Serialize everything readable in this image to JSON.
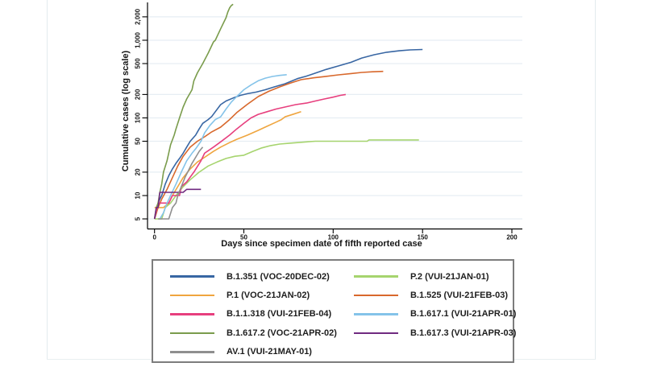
{
  "chart_data": {
    "type": "line",
    "title": "",
    "xlabel": "Days since specimen date of fifth reported case",
    "ylabel": "Cumulative cases (log scale)",
    "x_ticks": [
      0,
      50,
      100,
      150,
      200
    ],
    "x_tick_labels": [
      "0",
      "50",
      "100",
      "150",
      "200"
    ],
    "y_ticks": [
      5,
      10,
      20,
      50,
      100,
      200,
      500,
      1000,
      2000
    ],
    "y_tick_labels": [
      "5",
      "10",
      "20",
      "50",
      "100",
      "200",
      "500",
      "1,000",
      "2,000"
    ],
    "xlim": [
      0,
      205
    ],
    "ylim_log": [
      5,
      3000
    ],
    "y_scale": "log",
    "grid": "horizontal",
    "gridline_color": "#e6edf3",
    "axis_color": "#000000",
    "legend_position": "bottom-box",
    "series": [
      {
        "name": "b-1-351",
        "label": "B.1.351 (VOC-20DEC-02)",
        "color": "#3866a3",
        "points": [
          [
            0,
            5
          ],
          [
            1,
            6
          ],
          [
            2,
            8
          ],
          [
            3,
            9
          ],
          [
            4,
            10
          ],
          [
            6,
            14
          ],
          [
            8,
            18
          ],
          [
            10,
            22
          ],
          [
            12,
            26
          ],
          [
            14,
            30
          ],
          [
            16,
            35
          ],
          [
            18,
            42
          ],
          [
            20,
            50
          ],
          [
            23,
            60
          ],
          [
            25,
            72
          ],
          [
            27,
            85
          ],
          [
            30,
            95
          ],
          [
            32,
            104
          ],
          [
            34,
            120
          ],
          [
            37,
            148
          ],
          [
            40,
            165
          ],
          [
            44,
            180
          ],
          [
            48,
            195
          ],
          [
            52,
            205
          ],
          [
            57,
            215
          ],
          [
            62,
            230
          ],
          [
            67,
            250
          ],
          [
            73,
            275
          ],
          [
            80,
            320
          ],
          [
            85,
            345
          ],
          [
            89,
            370
          ],
          [
            96,
            420
          ],
          [
            103,
            467
          ],
          [
            110,
            520
          ],
          [
            116,
            590
          ],
          [
            123,
            650
          ],
          [
            130,
            700
          ],
          [
            137,
            730
          ],
          [
            143,
            750
          ],
          [
            150,
            760
          ]
        ]
      },
      {
        "name": "p-2",
        "label": "P.2 (VUI-21JAN-01)",
        "color": "#a6d46e",
        "points": [
          [
            0,
            5
          ],
          [
            4,
            5
          ],
          [
            6,
            7
          ],
          [
            9,
            8
          ],
          [
            12,
            10
          ],
          [
            16,
            13
          ],
          [
            20,
            16
          ],
          [
            25,
            20
          ],
          [
            30,
            24
          ],
          [
            35,
            27
          ],
          [
            40,
            30
          ],
          [
            45,
            32
          ],
          [
            50,
            33
          ],
          [
            55,
            37
          ],
          [
            60,
            41
          ],
          [
            65,
            44
          ],
          [
            70,
            46
          ],
          [
            75,
            47
          ],
          [
            80,
            48
          ],
          [
            85,
            49
          ],
          [
            90,
            50
          ],
          [
            100,
            50
          ],
          [
            110,
            50
          ],
          [
            119,
            50
          ],
          [
            120,
            52
          ],
          [
            130,
            52
          ],
          [
            140,
            52
          ],
          [
            148,
            52
          ]
        ]
      },
      {
        "name": "p-1",
        "label": "P.1 (VOC-21JAN-02)",
        "color": "#efa53f",
        "points": [
          [
            0,
            7
          ],
          [
            5,
            7
          ],
          [
            8,
            8
          ],
          [
            10,
            10
          ],
          [
            13,
            13
          ],
          [
            16,
            17
          ],
          [
            20,
            22
          ],
          [
            24,
            27
          ],
          [
            28,
            31
          ],
          [
            33,
            37
          ],
          [
            37,
            42
          ],
          [
            42,
            48
          ],
          [
            46,
            53
          ],
          [
            52,
            60
          ],
          [
            58,
            69
          ],
          [
            63,
            78
          ],
          [
            68,
            88
          ],
          [
            71,
            95
          ],
          [
            73,
            103
          ],
          [
            78,
            112
          ],
          [
            82,
            120
          ]
        ]
      },
      {
        "name": "b-1-525",
        "label": "B.1.525 (VUI-21FEB-03)",
        "color": "#d8682c",
        "points": [
          [
            0,
            5
          ],
          [
            2,
            7
          ],
          [
            4,
            9
          ],
          [
            7,
            12
          ],
          [
            10,
            17
          ],
          [
            13,
            24
          ],
          [
            16,
            32
          ],
          [
            20,
            42
          ],
          [
            24,
            50
          ],
          [
            28,
            57
          ],
          [
            32,
            66
          ],
          [
            37,
            76
          ],
          [
            42,
            95
          ],
          [
            46,
            117
          ],
          [
            52,
            150
          ],
          [
            58,
            188
          ],
          [
            64,
            220
          ],
          [
            70,
            250
          ],
          [
            76,
            280
          ],
          [
            82,
            310
          ],
          [
            89,
            328
          ],
          [
            95,
            340
          ],
          [
            103,
            358
          ],
          [
            110,
            372
          ],
          [
            116,
            385
          ],
          [
            122,
            392
          ],
          [
            128,
            397
          ]
        ]
      },
      {
        "name": "b-1-1-318",
        "label": "B.1.1.318 (VUI-21FEB-04)",
        "color": "#e73f7e",
        "points": [
          [
            0,
            5
          ],
          [
            2,
            8
          ],
          [
            8,
            8
          ],
          [
            10,
            10
          ],
          [
            14,
            10
          ],
          [
            15,
            13
          ],
          [
            18,
            15
          ],
          [
            22,
            20
          ],
          [
            26,
            28
          ],
          [
            28,
            35
          ],
          [
            33,
            42
          ],
          [
            37,
            49
          ],
          [
            42,
            60
          ],
          [
            46,
            72
          ],
          [
            50,
            85
          ],
          [
            54,
            100
          ],
          [
            58,
            111
          ],
          [
            63,
            120
          ],
          [
            68,
            130
          ],
          [
            73,
            138
          ],
          [
            79,
            148
          ],
          [
            85,
            155
          ],
          [
            90,
            165
          ],
          [
            95,
            175
          ],
          [
            100,
            185
          ],
          [
            104,
            195
          ],
          [
            107,
            200
          ]
        ]
      },
      {
        "name": "b-1-617-1",
        "label": "B.1.617.1 (VUI-21APR-01)",
        "color": "#84c3e9",
        "points": [
          [
            3,
            5
          ],
          [
            5,
            6
          ],
          [
            7,
            8
          ],
          [
            9,
            10
          ],
          [
            12,
            14
          ],
          [
            15,
            20
          ],
          [
            18,
            28
          ],
          [
            21,
            35
          ],
          [
            23,
            40
          ],
          [
            26,
            50
          ],
          [
            28,
            64
          ],
          [
            31,
            80
          ],
          [
            34,
            95
          ],
          [
            37,
            103
          ],
          [
            40,
            130
          ],
          [
            43,
            160
          ],
          [
            46,
            188
          ],
          [
            50,
            230
          ],
          [
            54,
            265
          ],
          [
            58,
            300
          ],
          [
            62,
            325
          ],
          [
            66,
            341
          ],
          [
            70,
            352
          ],
          [
            74,
            360
          ]
        ]
      },
      {
        "name": "b-1-617-2",
        "label": "B.1.617.2 (VOC-21APR-02)",
        "color": "#7a9c4c",
        "points": [
          [
            0,
            5
          ],
          [
            1,
            7
          ],
          [
            2,
            8
          ],
          [
            3,
            11
          ],
          [
            4,
            14
          ],
          [
            5,
            20
          ],
          [
            7,
            28
          ],
          [
            9,
            45
          ],
          [
            11,
            60
          ],
          [
            12,
            72
          ],
          [
            14,
            100
          ],
          [
            16,
            138
          ],
          [
            18,
            175
          ],
          [
            20,
            210
          ],
          [
            21,
            230
          ],
          [
            22,
            300
          ],
          [
            24,
            380
          ],
          [
            27,
            500
          ],
          [
            30,
            680
          ],
          [
            33,
            950
          ],
          [
            34,
            1000
          ],
          [
            37,
            1400
          ],
          [
            40,
            1950
          ],
          [
            41,
            2300
          ],
          [
            42,
            2600
          ],
          [
            43,
            2800
          ],
          [
            44,
            2900
          ]
        ]
      },
      {
        "name": "b-1-617-3",
        "label": "B.1.617.3 (VUI-21APR-03)",
        "color": "#702a80",
        "points": [
          [
            0,
            5
          ],
          [
            1,
            7
          ],
          [
            2,
            7
          ],
          [
            3,
            11
          ],
          [
            16,
            11
          ],
          [
            18,
            12
          ],
          [
            26,
            12
          ]
        ]
      },
      {
        "name": "av-1",
        "label": "AV.1 (VUI-21MAY-01)",
        "color": "#8f8f8f",
        "points": [
          [
            2,
            5
          ],
          [
            8,
            5
          ],
          [
            10,
            7
          ],
          [
            12,
            8
          ],
          [
            13,
            10
          ],
          [
            15,
            13
          ],
          [
            17,
            17
          ],
          [
            19,
            21
          ],
          [
            21,
            26
          ],
          [
            23,
            31
          ],
          [
            25,
            37
          ],
          [
            27,
            42
          ]
        ]
      }
    ]
  },
  "legend": {
    "border_color": "#7d7d7d"
  }
}
